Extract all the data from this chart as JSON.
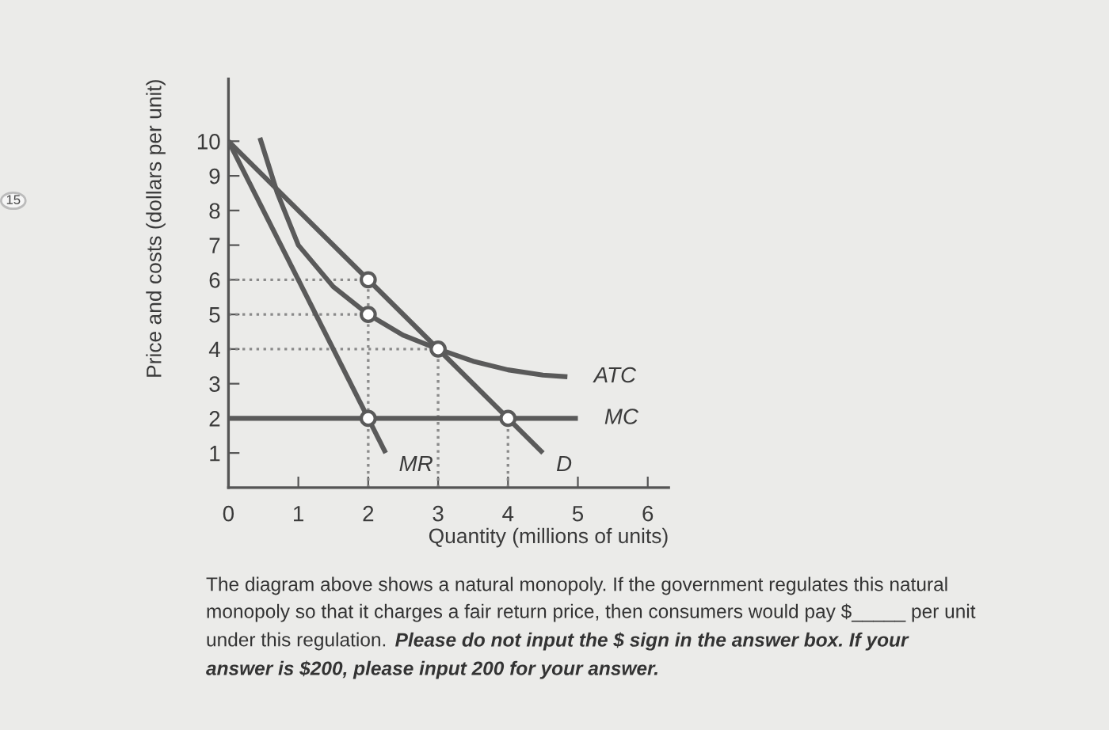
{
  "chart_data": {
    "type": "line",
    "xlabel": "Quantity (millions of units)",
    "ylabel": "Price and costs (dollars per unit)",
    "xlim": [
      0,
      6.3
    ],
    "ylim": [
      0,
      11.8
    ],
    "xticks": [
      0,
      1,
      2,
      3,
      4,
      5,
      6
    ],
    "yticks": [
      1,
      2,
      3,
      4,
      5,
      6,
      7,
      8,
      9,
      10
    ],
    "grid": false,
    "series": [
      {
        "name": "D",
        "color": "#5a5a5a",
        "x": [
          0,
          4.5
        ],
        "values": [
          10,
          1
        ]
      },
      {
        "name": "MR",
        "color": "#5a5a5a",
        "x": [
          0,
          2.25
        ],
        "values": [
          10,
          1
        ]
      },
      {
        "name": "ATC",
        "color": "#5a5a5a",
        "x": [
          0.45,
          0.7,
          1,
          1.5,
          2,
          2.5,
          3,
          3.5,
          4,
          4.5,
          4.85
        ],
        "values": [
          10.1,
          8.5,
          7.0,
          5.8,
          5,
          4.4,
          4,
          3.65,
          3.4,
          3.25,
          3.2
        ]
      },
      {
        "name": "MC",
        "color": "#5a5a5a",
        "x": [
          0,
          5
        ],
        "values": [
          2,
          2
        ]
      },
      {
        "color": "#8a8a8a",
        "line_style": "dotted",
        "x": [
          0,
          2
        ],
        "values": [
          6,
          6
        ]
      },
      {
        "color": "#8a8a8a",
        "line_style": "dotted",
        "x": [
          0,
          2
        ],
        "values": [
          5,
          5
        ]
      },
      {
        "color": "#8a8a8a",
        "line_style": "dotted",
        "x": [
          0,
          3
        ],
        "values": [
          4,
          4
        ]
      },
      {
        "color": "#8a8a8a",
        "line_style": "dotted",
        "x": [
          2,
          2
        ],
        "values": [
          0,
          6
        ]
      },
      {
        "color": "#8a8a8a",
        "line_style": "dotted",
        "x": [
          3,
          3
        ],
        "values": [
          0,
          4
        ]
      },
      {
        "color": "#8a8a8a",
        "line_style": "dotted",
        "x": [
          4,
          4
        ],
        "values": [
          0,
          2
        ]
      },
      {
        "type": "scatter",
        "marker": "circle",
        "color": "#5a5a5a",
        "x": [
          2,
          2,
          3,
          2,
          4
        ],
        "values": [
          6,
          5,
          4,
          2,
          2
        ]
      }
    ],
    "annotations": [
      "15",
      "The diagram above shows a natural monopoly. If the government regulates this natural",
      "monopoly so that it charges a fair return price, then consumers would pay $_____ per unit",
      "under this regulation.",
      "Please do not input the $ sign in the answer box. If your",
      "answer is $200, please input 200 for your answer."
    ]
  }
}
